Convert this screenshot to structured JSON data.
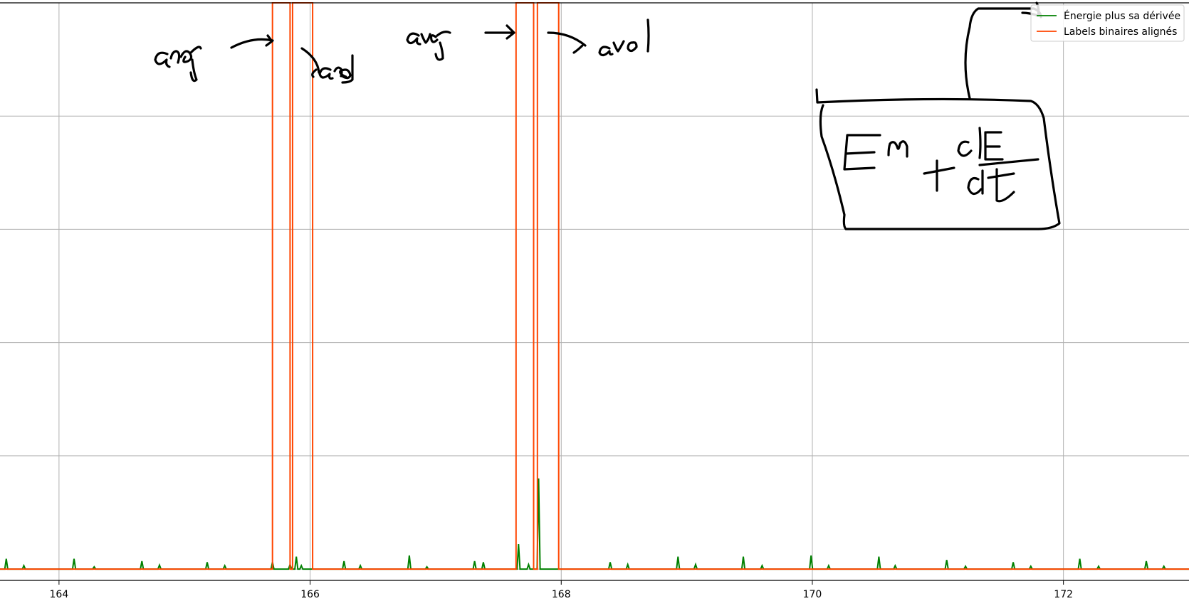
{
  "chart_data": {
    "type": "line",
    "title": "",
    "xlabel": "",
    "ylabel": "",
    "xlim": [
      163.53,
      173.0
    ],
    "ylim": [
      -0.02,
      1.0
    ],
    "grid": true,
    "legend_position": "top-right",
    "x_ticks": [
      164,
      166,
      168,
      170,
      172
    ],
    "x_tick_labels": [
      "164",
      "166",
      "168",
      "170",
      "172"
    ],
    "y_gridlines": [
      0.0,
      0.2,
      0.4,
      0.6,
      0.8,
      1.0
    ],
    "series": [
      {
        "name": "Énergie plus sa dérivée",
        "color": "#008000",
        "baseline": 0.0,
        "spikes": [
          [
            163.58,
            0.018
          ],
          [
            163.72,
            0.006
          ],
          [
            164.12,
            0.018
          ],
          [
            164.28,
            0.004
          ],
          [
            164.66,
            0.014
          ],
          [
            164.8,
            0.007
          ],
          [
            165.18,
            0.012
          ],
          [
            165.32,
            0.006
          ],
          [
            165.7,
            0.012
          ],
          [
            165.84,
            0.008
          ],
          [
            165.89,
            0.022
          ],
          [
            165.93,
            0.006
          ],
          [
            166.27,
            0.014
          ],
          [
            166.4,
            0.006
          ],
          [
            166.79,
            0.024
          ],
          [
            166.93,
            0.004
          ],
          [
            167.31,
            0.014
          ],
          [
            167.38,
            0.012
          ],
          [
            167.66,
            0.044
          ],
          [
            167.74,
            0.008
          ],
          [
            167.82,
            0.16
          ],
          [
            168.39,
            0.012
          ],
          [
            168.53,
            0.008
          ],
          [
            168.93,
            0.022
          ],
          [
            169.07,
            0.008
          ],
          [
            169.45,
            0.022
          ],
          [
            169.6,
            0.006
          ],
          [
            169.99,
            0.024
          ],
          [
            170.13,
            0.006
          ],
          [
            170.53,
            0.022
          ],
          [
            170.66,
            0.006
          ],
          [
            171.07,
            0.016
          ],
          [
            171.22,
            0.005
          ],
          [
            171.6,
            0.012
          ],
          [
            171.74,
            0.005
          ],
          [
            172.13,
            0.018
          ],
          [
            172.28,
            0.005
          ],
          [
            172.66,
            0.014
          ],
          [
            172.8,
            0.005
          ]
        ]
      },
      {
        "name": "Labels binaires alignés",
        "color": "#ff4500",
        "baseline": 0.0,
        "high": 1.0,
        "intervals": [
          [
            165.7,
            165.84
          ],
          [
            165.86,
            166.02
          ],
          [
            167.64,
            167.78
          ],
          [
            167.81,
            167.98
          ]
        ]
      }
    ],
    "annotations": {
      "handwritten": [
        "avg",
        "avd",
        "avg",
        "avol",
        "En + dE/dt"
      ]
    }
  }
}
